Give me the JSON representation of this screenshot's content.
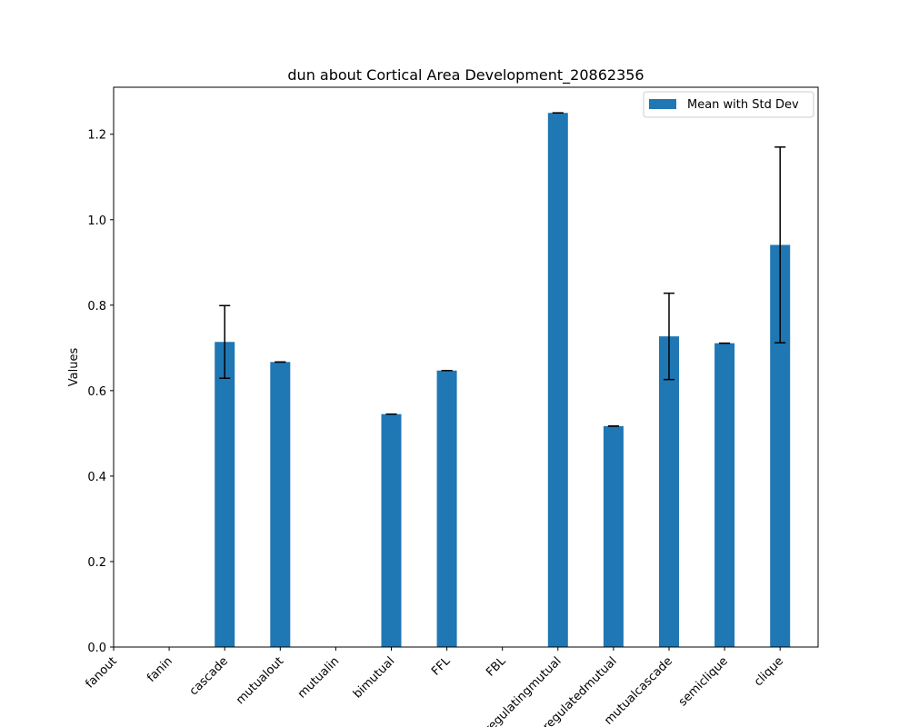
{
  "chart_data": {
    "type": "bar",
    "title": "dun about Cortical Area Development_20862356",
    "xlabel": "",
    "ylabel": "Values",
    "ylim": [
      0,
      1.31
    ],
    "yticks": [
      0.0,
      0.2,
      0.4,
      0.6,
      0.8,
      1.0,
      1.2
    ],
    "ytick_labels": [
      "0.0",
      "0.2",
      "0.4",
      "0.6",
      "0.8",
      "1.0",
      "1.2"
    ],
    "categories": [
      "fanout",
      "fanin",
      "cascade",
      "mutualout",
      "mutualin",
      "bimutual",
      "FFL",
      "FBL",
      "regulatingmutual",
      "regulatedmutual",
      "mutualcascade",
      "semiclique",
      "clique"
    ],
    "series": [
      {
        "name": "Mean with Std Dev",
        "color": "#1f77b4",
        "values": [
          0,
          0,
          0.714,
          0.667,
          0,
          0.545,
          0.647,
          0,
          1.25,
          0.517,
          0.727,
          0.711,
          0.941
        ],
        "errors": [
          0,
          0,
          0.085,
          0,
          0,
          0,
          0,
          0,
          0,
          0,
          0.101,
          0,
          0.229
        ]
      }
    ],
    "legend_position": "top-right",
    "grid": false,
    "x_tick_rotation": 45
  }
}
